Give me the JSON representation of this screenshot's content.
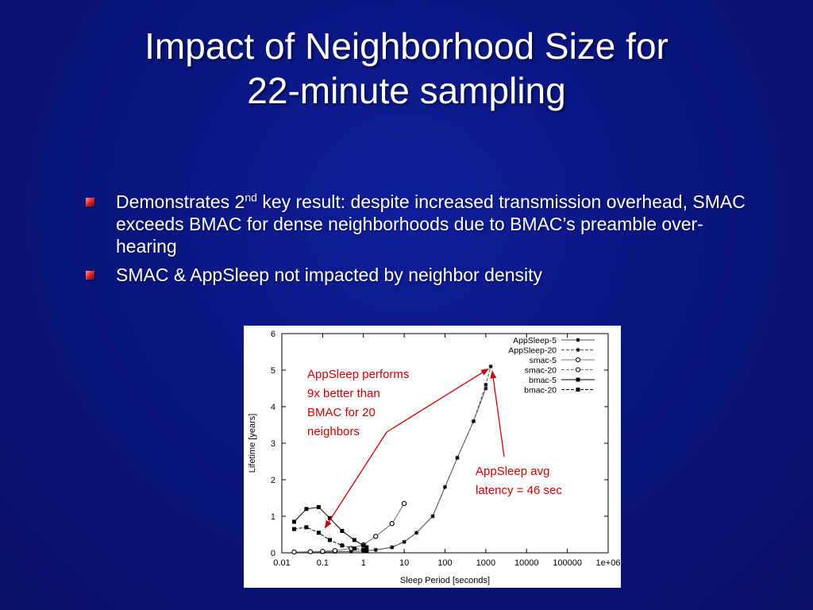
{
  "slide": {
    "title_line1": "Impact of Neighborhood Size for",
    "title_line2": "22-minute sampling",
    "bullets": [
      {
        "pre": "Demonstrates 2",
        "sup": "nd",
        "post": " key result: despite increased transmission overhead, SMAC exceeds BMAC for dense neighborhoods due to BMAC’s preamble over-hearing"
      },
      {
        "text": "SMAC & AppSleep not impacted by neighbor density"
      }
    ],
    "colors": {
      "background": "#0a1680",
      "text": "#ffffff",
      "bullet": "#d42020",
      "annotation": "#cc0000"
    }
  },
  "chart_data": {
    "type": "line",
    "x_scale": "log",
    "xlabel": "Sleep Period [seconds]",
    "ylabel": "Lifetime [years]",
    "xlim": [
      0.01,
      1000000
    ],
    "ylim": [
      0,
      6
    ],
    "x_ticks": [
      "0.01",
      "0.1",
      "1",
      "10",
      "100",
      "1000",
      "10000",
      "100000",
      "1e+06"
    ],
    "y_ticks": [
      "0",
      "1",
      "2",
      "3",
      "4",
      "5",
      "6"
    ],
    "legend_position": "top-right",
    "series": [
      {
        "name": "AppSleep-5",
        "marker": "star",
        "line": "solid",
        "x": [
          0.02,
          0.05,
          0.1,
          0.2,
          0.5,
          1,
          2,
          5,
          10,
          20,
          50,
          100,
          200,
          500,
          1000
        ],
        "y": [
          0.02,
          0.02,
          0.02,
          0.03,
          0.04,
          0.05,
          0.08,
          0.15,
          0.3,
          0.55,
          1.0,
          1.8,
          2.6,
          3.6,
          4.5
        ]
      },
      {
        "name": "AppSleep-20",
        "marker": "star",
        "line": "dashed",
        "x": [
          0.02,
          0.05,
          0.1,
          0.2,
          0.5,
          1,
          2,
          5,
          10,
          20,
          50,
          100,
          200,
          500,
          1000,
          1320
        ],
        "y": [
          0.02,
          0.02,
          0.02,
          0.03,
          0.04,
          0.05,
          0.08,
          0.15,
          0.3,
          0.55,
          1.0,
          1.8,
          2.6,
          3.6,
          4.6,
          5.1
        ]
      },
      {
        "name": "smac-5",
        "marker": "circle-open",
        "line": "solid",
        "x": [
          0.02,
          0.05,
          0.1,
          0.2,
          0.5,
          1,
          2,
          5,
          10
        ],
        "y": [
          0.02,
          0.03,
          0.04,
          0.06,
          0.12,
          0.22,
          0.45,
          0.8,
          1.35
        ]
      },
      {
        "name": "smac-20",
        "marker": "circle-open",
        "line": "dashed",
        "x": [
          0.02,
          0.05,
          0.1,
          0.2,
          0.5,
          1,
          2,
          5,
          10
        ],
        "y": [
          0.02,
          0.03,
          0.04,
          0.06,
          0.12,
          0.22,
          0.45,
          0.8,
          1.35
        ]
      },
      {
        "name": "bmac-5",
        "marker": "square-filled",
        "line": "solid",
        "x": [
          0.02,
          0.04,
          0.08,
          0.15,
          0.3,
          0.6,
          1,
          1.2
        ],
        "y": [
          0.85,
          1.2,
          1.25,
          0.95,
          0.6,
          0.35,
          0.2,
          0.15
        ]
      },
      {
        "name": "bmac-20",
        "marker": "square-filled",
        "line": "dashed",
        "x": [
          0.02,
          0.04,
          0.08,
          0.15,
          0.3,
          0.6,
          1,
          1.2
        ],
        "y": [
          0.65,
          0.7,
          0.55,
          0.35,
          0.2,
          0.12,
          0.08,
          0.06
        ]
      }
    ],
    "annotations": [
      {
        "lines": [
          "AppSleep performs",
          "9x better than",
          "BMAC for 20",
          "neighbors"
        ],
        "arrows_to": [
          [
            1320,
            5.1
          ],
          [
            0.1,
            0.62
          ]
        ]
      },
      {
        "lines": [
          "AppSleep avg",
          "latency =  46 sec"
        ],
        "arrows_to": [
          [
            1320,
            5.1
          ]
        ]
      }
    ]
  }
}
